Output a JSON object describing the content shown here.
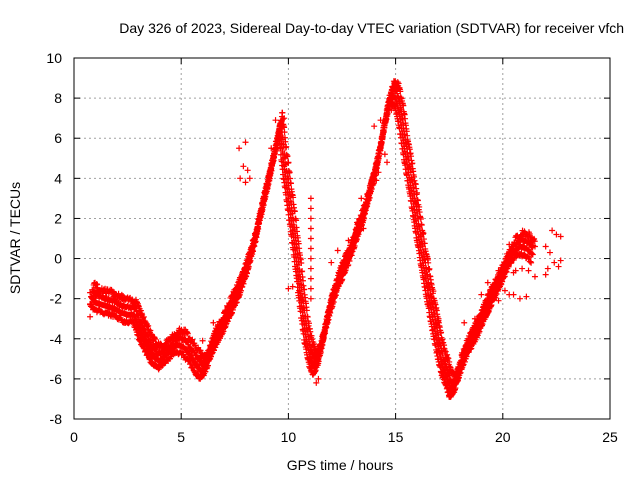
{
  "chart_data": {
    "type": "scatter",
    "title": "Day 326 of 2023, Sidereal Day-to-day VTEC variation (SDTVAR) for receiver vfch",
    "xlabel": "GPS time / hours",
    "ylabel": "SDTVAR / TECUs",
    "xlim": [
      0,
      25
    ],
    "ylim": [
      -8,
      10
    ],
    "xticks": [
      0,
      5,
      10,
      15,
      20,
      25
    ],
    "yticks": [
      -8,
      -6,
      -4,
      -2,
      0,
      2,
      4,
      6,
      8,
      10
    ],
    "grid": true,
    "marker": "+",
    "series_color": "#ff0000",
    "track_points": [
      [
        0.8,
        -1.9
      ],
      [
        1.0,
        -2.2
      ],
      [
        1.3,
        -2.3
      ],
      [
        1.6,
        -2.4
      ],
      [
        1.9,
        -2.5
      ],
      [
        2.2,
        -2.7
      ],
      [
        2.5,
        -2.8
      ],
      [
        2.8,
        -2.8
      ],
      [
        3.0,
        -3.4
      ],
      [
        3.2,
        -3.9
      ],
      [
        3.4,
        -4.3
      ],
      [
        3.6,
        -4.7
      ],
      [
        3.8,
        -5.0
      ],
      [
        4.0,
        -5.1
      ],
      [
        4.2,
        -4.9
      ],
      [
        4.5,
        -4.6
      ],
      [
        4.8,
        -4.3
      ],
      [
        5.1,
        -4.4
      ],
      [
        5.4,
        -4.8
      ],
      [
        5.7,
        -5.3
      ],
      [
        5.9,
        -5.6
      ],
      [
        6.1,
        -5.5
      ],
      [
        6.3,
        -4.9
      ],
      [
        6.5,
        -4.3
      ],
      [
        6.7,
        -3.9
      ],
      [
        6.9,
        -3.5
      ],
      [
        7.1,
        -3.0
      ],
      [
        7.3,
        -2.5
      ],
      [
        7.5,
        -2.1
      ],
      [
        7.7,
        -1.6
      ],
      [
        7.9,
        -1.0
      ],
      [
        8.1,
        -0.4
      ],
      [
        8.3,
        0.4
      ],
      [
        8.5,
        1.2
      ],
      [
        8.7,
        2.2
      ],
      [
        8.9,
        3.1
      ],
      [
        9.1,
        4.0
      ],
      [
        9.3,
        5.0
      ],
      [
        9.5,
        5.9
      ],
      [
        9.6,
        6.5
      ],
      [
        9.8,
        4.6
      ],
      [
        10.0,
        3.0
      ],
      [
        10.2,
        1.4
      ],
      [
        10.4,
        -0.3
      ],
      [
        10.6,
        -2.2
      ],
      [
        10.8,
        -3.8
      ],
      [
        11.0,
        -4.9
      ],
      [
        11.2,
        -5.4
      ],
      [
        11.4,
        -5.0
      ],
      [
        11.6,
        -4.1
      ],
      [
        11.8,
        -3.1
      ],
      [
        12.0,
        -2.3
      ],
      [
        12.2,
        -1.6
      ],
      [
        12.4,
        -1.0
      ],
      [
        12.6,
        -0.5
      ],
      [
        12.8,
        0.0
      ],
      [
        13.0,
        0.6
      ],
      [
        13.2,
        1.2
      ],
      [
        13.4,
        1.8
      ],
      [
        13.6,
        2.5
      ],
      [
        13.8,
        3.3
      ],
      [
        14.0,
        4.1
      ],
      [
        14.2,
        5.0
      ],
      [
        14.4,
        6.2
      ],
      [
        14.6,
        7.3
      ],
      [
        14.8,
        8.1
      ],
      [
        15.0,
        8.0
      ],
      [
        15.2,
        7.1
      ],
      [
        15.4,
        5.6
      ],
      [
        15.6,
        4.3
      ],
      [
        15.8,
        3.0
      ],
      [
        16.0,
        1.6
      ],
      [
        16.2,
        0.3
      ],
      [
        16.4,
        -1.0
      ],
      [
        16.6,
        -2.2
      ],
      [
        16.8,
        -3.4
      ],
      [
        17.0,
        -4.5
      ],
      [
        17.2,
        -5.4
      ],
      [
        17.4,
        -6.0
      ],
      [
        17.6,
        -6.6
      ],
      [
        17.8,
        -6.2
      ],
      [
        18.0,
        -5.5
      ],
      [
        18.2,
        -4.9
      ],
      [
        18.4,
        -4.4
      ],
      [
        18.6,
        -4.0
      ],
      [
        18.8,
        -3.6
      ],
      [
        19.0,
        -3.1
      ],
      [
        19.2,
        -2.6
      ],
      [
        19.4,
        -2.2
      ],
      [
        19.6,
        -1.7
      ],
      [
        19.8,
        -1.3
      ],
      [
        20.0,
        -0.8
      ],
      [
        20.2,
        -0.3
      ],
      [
        20.5,
        0.3
      ],
      [
        20.8,
        0.6
      ],
      [
        21.1,
        0.5
      ],
      [
        21.4,
        0.2
      ]
    ],
    "scatter_points": [
      [
        0.75,
        -1.7
      ],
      [
        0.75,
        -2.3
      ],
      [
        0.75,
        -2.9
      ],
      [
        1.1,
        -1.7
      ],
      [
        1.4,
        -2.0
      ],
      [
        2.7,
        -2.1
      ],
      [
        6.0,
        -4.1
      ],
      [
        6.5,
        -3.2
      ],
      [
        7.0,
        -3.0
      ],
      [
        7.6,
        -2.0
      ],
      [
        7.7,
        5.5
      ],
      [
        7.9,
        4.6
      ],
      [
        8.1,
        4.4
      ],
      [
        8.0,
        5.8
      ],
      [
        8.2,
        4.0
      ],
      [
        7.75,
        4.0
      ],
      [
        8.0,
        3.8
      ],
      [
        9.4,
        6.9
      ],
      [
        9.8,
        7.0
      ],
      [
        9.6,
        6.1
      ],
      [
        9.2,
        5.5
      ],
      [
        10.0,
        4.8
      ],
      [
        10.0,
        4.0
      ],
      [
        10.0,
        -1.5
      ],
      [
        10.2,
        -1.4
      ],
      [
        10.5,
        -1.6
      ],
      [
        10.6,
        -1.3
      ],
      [
        11.05,
        3.0
      ],
      [
        11.05,
        2.5
      ],
      [
        11.05,
        2.0
      ],
      [
        11.05,
        1.5
      ],
      [
        11.05,
        1.0
      ],
      [
        11.05,
        0.5
      ],
      [
        11.05,
        0.0
      ],
      [
        11.05,
        -0.5
      ],
      [
        11.05,
        -1.0
      ],
      [
        11.05,
        -1.5
      ],
      [
        11.05,
        -2.0
      ],
      [
        11.3,
        -6.2
      ],
      [
        11.4,
        -6.0
      ],
      [
        12.0,
        -0.2
      ],
      [
        12.3,
        0.4
      ],
      [
        12.8,
        0.9
      ],
      [
        13.2,
        1.8
      ],
      [
        13.4,
        3.0
      ],
      [
        13.5,
        1.5
      ],
      [
        14.2,
        4.3
      ],
      [
        14.5,
        5.2
      ],
      [
        14.6,
        4.8
      ],
      [
        14.1,
        3.9
      ],
      [
        14.0,
        6.6
      ],
      [
        14.3,
        6.9
      ],
      [
        14.8,
        7.4
      ],
      [
        15.6,
        4.5
      ],
      [
        16.0,
        2.6
      ],
      [
        16.5,
        0.0
      ],
      [
        17.0,
        -3.0
      ],
      [
        17.4,
        -4.8
      ],
      [
        17.5,
        -6.9
      ],
      [
        17.6,
        -6.5
      ],
      [
        18.2,
        -3.2
      ],
      [
        18.1,
        -4.7
      ],
      [
        18.7,
        -3.0
      ],
      [
        19.0,
        -1.8
      ],
      [
        19.3,
        -1.2
      ],
      [
        19.8,
        -0.6
      ],
      [
        19.8,
        -2.1
      ],
      [
        20.1,
        -1.6
      ],
      [
        20.3,
        -1.8
      ],
      [
        20.5,
        -0.7
      ],
      [
        20.6,
        -0.6
      ],
      [
        20.9,
        -0.5
      ],
      [
        21.2,
        -0.6
      ],
      [
        21.5,
        -0.9
      ],
      [
        20.5,
        -1.8
      ],
      [
        20.8,
        -2.0
      ],
      [
        21.1,
        -1.9
      ],
      [
        20.3,
        0.7
      ],
      [
        20.5,
        0.6
      ],
      [
        20.8,
        0.7
      ],
      [
        21.3,
        0.9
      ],
      [
        21.5,
        0.6
      ],
      [
        22.0,
        0.6
      ],
      [
        22.2,
        0.3
      ],
      [
        22.0,
        -0.8
      ],
      [
        22.1,
        -0.5
      ],
      [
        22.3,
        1.4
      ],
      [
        22.5,
        1.2
      ],
      [
        22.7,
        1.1
      ],
      [
        22.4,
        -0.2
      ],
      [
        22.6,
        -0.4
      ],
      [
        22.7,
        -0.1
      ]
    ]
  }
}
